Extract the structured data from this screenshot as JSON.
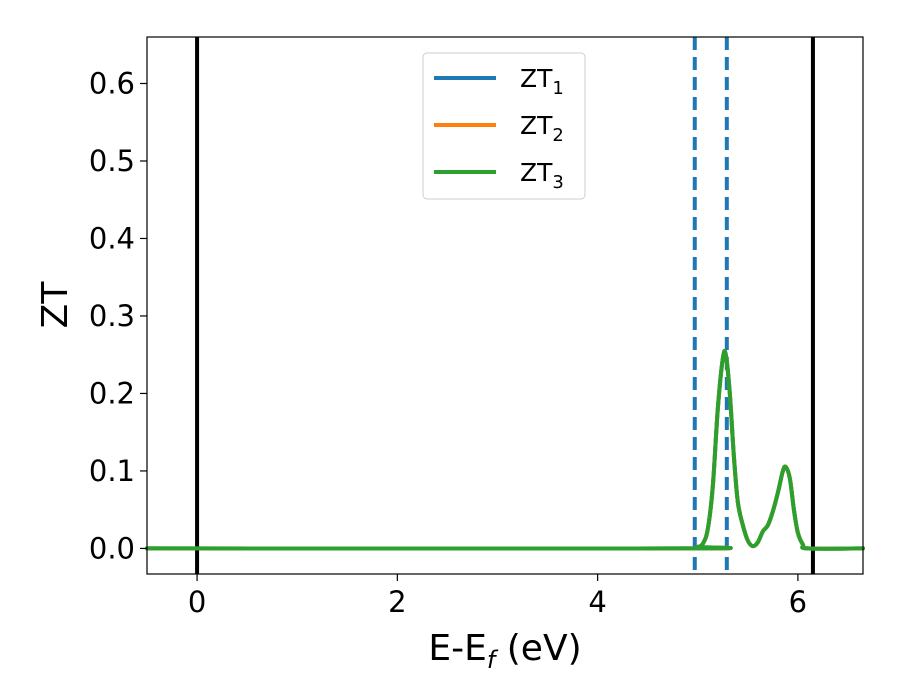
{
  "chart_data": {
    "type": "line",
    "xlabel": {
      "main": "E-E",
      "sub": "f",
      "suffix": " (eV)"
    },
    "ylabel": "ZT",
    "xlim": [
      -0.5,
      6.65
    ],
    "ylim": [
      -0.033,
      0.66
    ],
    "xticks": [
      0,
      2,
      4,
      6
    ],
    "xtick_labels": [
      "0",
      "2",
      "4",
      "6"
    ],
    "yticks": [
      0.0,
      0.1,
      0.2,
      0.3,
      0.4,
      0.5,
      0.6
    ],
    "ytick_labels": [
      "0.0",
      "0.1",
      "0.2",
      "0.3",
      "0.4",
      "0.5",
      "0.6"
    ],
    "grid": false,
    "legend_position": "top-center",
    "vlines_solid": {
      "x": [
        0.0,
        6.15
      ],
      "color": "#000000"
    },
    "vlines_dashed": {
      "x": [
        4.97,
        5.29
      ],
      "color": "#1f77b4"
    },
    "series": [
      {
        "name": "ZT",
        "sub": "1",
        "color": "#1f77b4",
        "x": [
          -0.5,
          4.9,
          5.0,
          5.05,
          5.1,
          5.15,
          5.2,
          5.25,
          5.28,
          5.32,
          5.36,
          5.4,
          5.45,
          5.5,
          5.55,
          5.6,
          5.65,
          5.7,
          5.75,
          5.8,
          5.85,
          5.88,
          5.92,
          5.96,
          6.0,
          6.05,
          6.1,
          6.65
        ],
        "y": [
          0.0,
          0.0,
          0.002,
          0.006,
          0.025,
          0.08,
          0.18,
          0.245,
          0.25,
          0.2,
          0.12,
          0.06,
          0.03,
          0.01,
          0.003,
          0.008,
          0.022,
          0.03,
          0.048,
          0.072,
          0.1,
          0.105,
          0.09,
          0.05,
          0.02,
          0.005,
          0.0,
          0.0
        ]
      },
      {
        "name": "ZT",
        "sub": "2",
        "color": "#ff7f0e",
        "x": [
          -0.5,
          4.9,
          5.0,
          5.05,
          5.1,
          5.15,
          5.2,
          5.25,
          5.28,
          5.32,
          5.36,
          5.4,
          5.45,
          5.5,
          5.55,
          5.6,
          5.65,
          5.7,
          5.75,
          5.8,
          5.85,
          5.88,
          5.92,
          5.96,
          6.0,
          6.05,
          6.1,
          6.65
        ],
        "y": [
          0.0,
          0.0,
          0.002,
          0.006,
          0.025,
          0.08,
          0.18,
          0.245,
          0.25,
          0.2,
          0.12,
          0.06,
          0.03,
          0.01,
          0.003,
          0.008,
          0.022,
          0.03,
          0.048,
          0.072,
          0.1,
          0.105,
          0.09,
          0.05,
          0.02,
          0.005,
          0.0,
          0.0
        ]
      },
      {
        "name": "ZT",
        "sub": "3",
        "color": "#2ca02c",
        "x": [
          -0.5,
          4.9,
          5.0,
          5.05,
          5.1,
          5.15,
          5.2,
          5.25,
          5.28,
          5.32,
          5.36,
          5.4,
          5.45,
          5.5,
          5.55,
          5.6,
          5.65,
          5.7,
          5.75,
          5.8,
          5.85,
          5.88,
          5.92,
          5.96,
          6.0,
          6.05,
          6.1,
          6.65
        ],
        "y": [
          0.0,
          0.0,
          0.002,
          0.006,
          0.025,
          0.08,
          0.18,
          0.245,
          0.25,
          0.2,
          0.12,
          0.06,
          0.03,
          0.01,
          0.003,
          0.008,
          0.022,
          0.03,
          0.048,
          0.072,
          0.1,
          0.105,
          0.09,
          0.05,
          0.02,
          0.005,
          0.0,
          0.0
        ]
      }
    ]
  }
}
